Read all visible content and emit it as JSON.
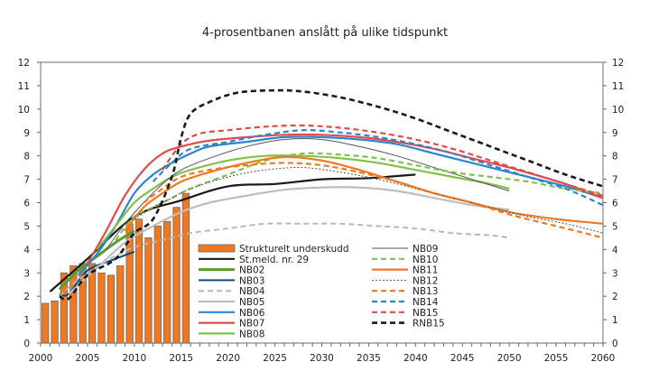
{
  "chart_data": {
    "type": "line",
    "title": "4-prosentbanen anslått på ulike tidspunkt",
    "xlabel": "",
    "ylabel": "",
    "xlim": [
      2000,
      2060
    ],
    "ylim": [
      0,
      12
    ],
    "x_ticks": [
      "2000",
      "2005",
      "2010",
      "2015",
      "2020",
      "2025",
      "2030",
      "2035",
      "2040",
      "2045",
      "2050",
      "2055",
      "2060"
    ],
    "y_ticks_left": [
      "0",
      "1",
      "2",
      "3",
      "4",
      "5",
      "6",
      "7",
      "8",
      "9",
      "10",
      "11",
      "12"
    ],
    "y_ticks_right": [
      "0",
      "1",
      "2",
      "3",
      "4",
      "5",
      "6",
      "7",
      "8",
      "9",
      "10",
      "11",
      "12"
    ],
    "grid": false,
    "legend_placement": "bottom-center",
    "bars": {
      "name": "Strukturelt underskudd",
      "color": "#f07820",
      "x": [
        2000,
        2001,
        2002,
        2003,
        2004,
        2005,
        2006,
        2007,
        2008,
        2009,
        2010,
        2011,
        2012,
        2013,
        2014,
        2015
      ],
      "values": [
        1.7,
        1.8,
        3.0,
        3.3,
        3.4,
        3.4,
        3.0,
        2.9,
        3.3,
        5.1,
        5.3,
        4.5,
        5.0,
        5.2,
        5.8,
        6.4
      ]
    },
    "series": [
      {
        "name": "St.meld. nr. 29",
        "color": "#1a1a1a",
        "style": "solid",
        "width": 2.2,
        "x": [
          2001,
          2005,
          2010,
          2015,
          2020,
          2025,
          2030,
          2035,
          2040
        ],
        "values": [
          2.2,
          3.6,
          5.4,
          6.1,
          6.7,
          6.8,
          7.0,
          7.05,
          7.2
        ]
      },
      {
        "name": "NB02",
        "color": "#5e9a32",
        "style": "solid",
        "width": 3,
        "x": [
          2002,
          2004,
          2006,
          2008,
          2010
        ],
        "values": [
          2.3,
          3.1,
          3.7,
          4.3,
          4.8
        ]
      },
      {
        "name": "NB03",
        "color": "#0c4a80",
        "style": "solid",
        "width": 2,
        "x": [
          2002,
          2003,
          2005,
          2008,
          2010
        ],
        "values": [
          2.1,
          2.1,
          3.1,
          3.6,
          3.9
        ]
      },
      {
        "name": "NB04",
        "color": "#b8b8b8",
        "style": "dashed",
        "width": 2,
        "x": [
          2002,
          2004,
          2007,
          2010,
          2013,
          2016,
          2020,
          2024,
          2028,
          2032,
          2036,
          2040,
          2044,
          2048,
          2050
        ],
        "values": [
          2.0,
          2.7,
          3.5,
          4.1,
          4.4,
          4.7,
          4.9,
          5.1,
          5.1,
          5.1,
          5.0,
          4.9,
          4.7,
          4.6,
          4.5
        ]
      },
      {
        "name": "NB05",
        "color": "#bdbdbd",
        "style": "solid",
        "width": 2.2,
        "x": [
          2003,
          2006,
          2009,
          2012,
          2015,
          2018,
          2022,
          2026,
          2030,
          2034,
          2038,
          2042,
          2046,
          2050
        ],
        "values": [
          2.1,
          3.2,
          4.3,
          5.0,
          5.6,
          6.0,
          6.3,
          6.55,
          6.65,
          6.65,
          6.5,
          6.2,
          5.9,
          5.7
        ]
      },
      {
        "name": "NB06",
        "color": "#2e86c8",
        "style": "solid",
        "width": 2.2,
        "x": [
          2004,
          2006,
          2008,
          2010,
          2012,
          2014,
          2016,
          2018,
          2022,
          2026,
          2030,
          2034,
          2038,
          2042,
          2046,
          2050,
          2056,
          2060
        ],
        "values": [
          2.9,
          3.8,
          5.0,
          6.4,
          7.2,
          7.7,
          8.1,
          8.4,
          8.6,
          8.8,
          8.8,
          8.7,
          8.5,
          8.1,
          7.7,
          7.3,
          6.7,
          6.2
        ]
      },
      {
        "name": "NB07",
        "color": "#e04a4a",
        "style": "solid",
        "width": 2.2,
        "x": [
          2005,
          2007,
          2009,
          2011,
          2013,
          2015,
          2018,
          2022,
          2026,
          2030,
          2034,
          2038,
          2042,
          2046,
          2050,
          2056,
          2060
        ],
        "values": [
          3.4,
          4.8,
          6.3,
          7.4,
          8.1,
          8.4,
          8.65,
          8.8,
          8.9,
          8.9,
          8.8,
          8.6,
          8.3,
          7.9,
          7.5,
          6.8,
          6.2
        ]
      },
      {
        "name": "NB08",
        "color": "#82c04a",
        "style": "solid",
        "width": 2.2,
        "x": [
          2006,
          2008,
          2010,
          2012,
          2014,
          2016,
          2020,
          2024,
          2028,
          2032,
          2036,
          2040,
          2044,
          2048,
          2050
        ],
        "values": [
          4.0,
          5.0,
          6.0,
          6.6,
          7.1,
          7.4,
          7.8,
          8.0,
          8.0,
          7.9,
          7.7,
          7.4,
          7.1,
          6.8,
          6.6
        ]
      },
      {
        "name": "NB09",
        "color": "#555555",
        "style": "solid",
        "width": 1,
        "x": [
          2007,
          2009,
          2011,
          2013,
          2015,
          2018,
          2022,
          2026,
          2030,
          2034,
          2038,
          2042,
          2046,
          2050
        ],
        "values": [
          4.0,
          5.1,
          6.0,
          6.8,
          7.4,
          7.9,
          8.4,
          8.7,
          8.7,
          8.4,
          8.0,
          7.5,
          7.0,
          6.5
        ]
      },
      {
        "name": "NB10",
        "color": "#82c04a",
        "style": "dashed",
        "width": 2.2,
        "x": [
          2008,
          2010,
          2012,
          2014,
          2016,
          2020,
          2024,
          2028,
          2032,
          2036,
          2040,
          2044,
          2048,
          2052,
          2056,
          2060
        ],
        "values": [
          4.4,
          5.4,
          5.8,
          6.2,
          6.6,
          7.2,
          7.8,
          8.1,
          8.05,
          7.9,
          7.6,
          7.3,
          7.1,
          6.9,
          6.6,
          6.4
        ]
      },
      {
        "name": "NB11",
        "color": "#f07820",
        "style": "solid",
        "width": 2.2,
        "x": [
          2009,
          2011,
          2013,
          2015,
          2018,
          2022,
          2026,
          2030,
          2034,
          2038,
          2042,
          2046,
          2050,
          2055,
          2060
        ],
        "values": [
          4.8,
          5.8,
          6.4,
          6.9,
          7.3,
          7.7,
          7.95,
          7.8,
          7.4,
          6.9,
          6.4,
          6.0,
          5.6,
          5.3,
          5.1
        ]
      },
      {
        "name": "NB12",
        "color": "#555555",
        "style": "dotted",
        "width": 1,
        "x": [
          2010,
          2012,
          2014,
          2016,
          2020,
          2024,
          2028,
          2032,
          2036,
          2040,
          2044,
          2048,
          2052,
          2056,
          2060
        ],
        "values": [
          5.3,
          5.8,
          6.2,
          6.6,
          7.1,
          7.4,
          7.5,
          7.3,
          7.0,
          6.6,
          6.2,
          5.8,
          5.4,
          5.1,
          4.7
        ]
      },
      {
        "name": "NB13",
        "color": "#f07820",
        "style": "dashed",
        "width": 2.2,
        "x": [
          2011,
          2013,
          2015,
          2018,
          2022,
          2026,
          2030,
          2034,
          2038,
          2042,
          2046,
          2050,
          2055,
          2060
        ],
        "values": [
          6.0,
          6.6,
          7.1,
          7.4,
          7.6,
          7.7,
          7.6,
          7.3,
          6.9,
          6.4,
          6.0,
          5.5,
          5.0,
          4.5
        ]
      },
      {
        "name": "NB14",
        "color": "#2e86c8",
        "style": "dashed",
        "width": 2.2,
        "x": [
          2012,
          2014,
          2016,
          2020,
          2024,
          2028,
          2032,
          2036,
          2040,
          2044,
          2048,
          2052,
          2056,
          2060
        ],
        "values": [
          6.9,
          7.7,
          8.3,
          8.6,
          8.9,
          9.1,
          9.0,
          8.8,
          8.5,
          8.1,
          7.6,
          7.1,
          6.6,
          5.9
        ]
      },
      {
        "name": "NB15",
        "color": "#e04a4a",
        "style": "dashed",
        "width": 2.2,
        "x": [
          2013,
          2015,
          2017,
          2020,
          2024,
          2028,
          2032,
          2036,
          2040,
          2044,
          2048,
          2052,
          2056,
          2060
        ],
        "values": [
          7.4,
          8.5,
          8.95,
          9.1,
          9.25,
          9.3,
          9.2,
          9.0,
          8.7,
          8.3,
          7.8,
          7.3,
          6.8,
          6.3
        ]
      },
      {
        "name": "RNB15",
        "color": "#1a1a1a",
        "style": "dashed",
        "width": 2.6,
        "x": [
          2002,
          2003,
          2005,
          2008,
          2010,
          2012,
          2014,
          2015,
          2016,
          2018,
          2021,
          2025,
          2028,
          2032,
          2036,
          2040,
          2044,
          2048,
          2052,
          2056,
          2060
        ],
        "values": [
          2.0,
          1.9,
          2.9,
          3.6,
          4.7,
          5.3,
          7.1,
          8.8,
          9.8,
          10.3,
          10.7,
          10.8,
          10.75,
          10.5,
          10.1,
          9.6,
          9.0,
          8.4,
          7.8,
          7.2,
          6.7
        ]
      }
    ]
  }
}
